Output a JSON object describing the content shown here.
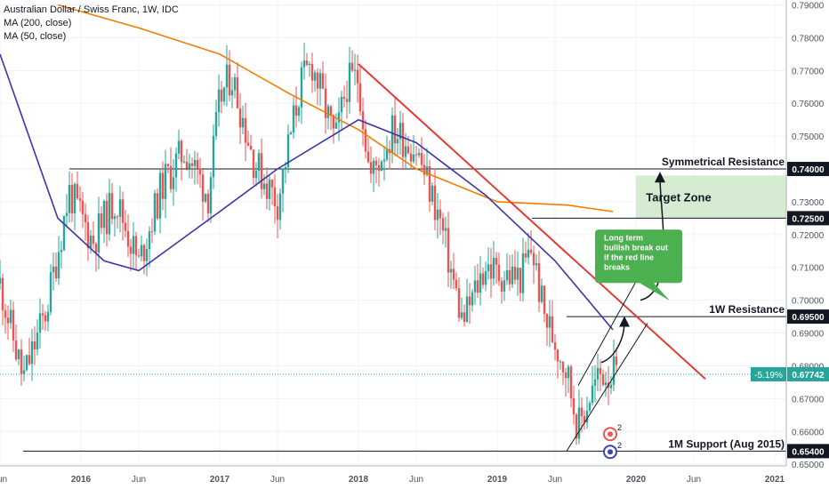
{
  "header": {
    "symbol_line": "Australian Dollar / Swiss Franc, 1W, IDC",
    "ma200_label": "MA (200, close)",
    "ma50_label": "MA (50, close)"
  },
  "colors": {
    "up": "#26a69a",
    "down": "#ef5350",
    "ma200": "#f57c00",
    "ma50": "#3f32a8",
    "trendline": "#e53935",
    "target_zone_fill": "#d6ecd2",
    "callout_fill": "#4caf50",
    "last_price_badge": "#26a69a"
  },
  "chart_data": {
    "type": "candlestick",
    "timeframe": "1W",
    "x_ticks": [
      "Jun",
      "2016",
      "Jun",
      "2017",
      "Jun",
      "2018",
      "Jun",
      "2019",
      "Jun",
      "2020",
      "Jun",
      "2021"
    ],
    "y_ticks": [
      "0.65000",
      "0.66000",
      "0.67000",
      "0.68000",
      "0.69000",
      "0.70000",
      "0.71000",
      "0.72000",
      "0.73000",
      "0.74000",
      "0.75000",
      "0.76000",
      "0.77000",
      "0.78000",
      "0.79000"
    ],
    "ylim": [
      0.6495,
      0.7915
    ],
    "xlim": [
      "2015-06",
      "2021-02"
    ],
    "ohlc_anchors": [
      {
        "date": "2015-06",
        "close": 0.705
      },
      {
        "date": "2015-08",
        "close": 0.676
      },
      {
        "date": "2015-10",
        "close": 0.697
      },
      {
        "date": "2015-12",
        "close": 0.733
      },
      {
        "date": "2016-02",
        "close": 0.718
      },
      {
        "date": "2016-04",
        "close": 0.731
      },
      {
        "date": "2016-06",
        "close": 0.711
      },
      {
        "date": "2016-08",
        "close": 0.735
      },
      {
        "date": "2016-10",
        "close": 0.746
      },
      {
        "date": "2016-12",
        "close": 0.732
      },
      {
        "date": "2017-01",
        "close": 0.761
      },
      {
        "date": "2017-02",
        "close": 0.769
      },
      {
        "date": "2017-04",
        "close": 0.742
      },
      {
        "date": "2017-06",
        "close": 0.73
      },
      {
        "date": "2017-08",
        "close": 0.766
      },
      {
        "date": "2017-09",
        "close": 0.772
      },
      {
        "date": "2017-11",
        "close": 0.748
      },
      {
        "date": "2017-12",
        "close": 0.766
      },
      {
        "date": "2018-01",
        "close": 0.768
      },
      {
        "date": "2018-02",
        "close": 0.737
      },
      {
        "date": "2018-04",
        "close": 0.752
      },
      {
        "date": "2018-06",
        "close": 0.746
      },
      {
        "date": "2018-08",
        "close": 0.725
      },
      {
        "date": "2018-10",
        "close": 0.693
      },
      {
        "date": "2018-12",
        "close": 0.711
      },
      {
        "date": "2019-01",
        "close": 0.708
      },
      {
        "date": "2019-03",
        "close": 0.707
      },
      {
        "date": "2019-04",
        "close": 0.716
      },
      {
        "date": "2019-05",
        "close": 0.696
      },
      {
        "date": "2019-07",
        "close": 0.679
      },
      {
        "date": "2019-08",
        "close": 0.661
      },
      {
        "date": "2019-09",
        "close": 0.671
      },
      {
        "date": "2019-10",
        "close": 0.678
      },
      {
        "date": "2019-11",
        "close": 0.6774
      }
    ],
    "ma200": [
      {
        "date": "2015-11",
        "value": 0.79
      },
      {
        "date": "2016-06",
        "value": 0.783
      },
      {
        "date": "2017-01",
        "value": 0.775
      },
      {
        "date": "2017-07",
        "value": 0.763
      },
      {
        "date": "2018-01",
        "value": 0.752
      },
      {
        "date": "2018-06",
        "value": 0.74
      },
      {
        "date": "2019-01",
        "value": 0.73
      },
      {
        "date": "2019-07",
        "value": 0.729
      },
      {
        "date": "2019-11",
        "value": 0.727
      }
    ],
    "ma50": [
      {
        "date": "2015-06",
        "value": 0.775
      },
      {
        "date": "2015-11",
        "value": 0.725
      },
      {
        "date": "2016-03",
        "value": 0.712
      },
      {
        "date": "2016-06",
        "value": 0.709
      },
      {
        "date": "2017-01",
        "value": 0.727
      },
      {
        "date": "2017-06",
        "value": 0.74
      },
      {
        "date": "2018-01",
        "value": 0.755
      },
      {
        "date": "2018-06",
        "value": 0.748
      },
      {
        "date": "2018-12",
        "value": 0.732
      },
      {
        "date": "2019-06",
        "value": 0.712
      },
      {
        "date": "2019-11",
        "value": 0.691
      }
    ],
    "horizontal_levels": [
      {
        "label": "Symmetrical Resistance",
        "value": 0.74,
        "price_label": "0.74000",
        "from": "2015-12"
      },
      {
        "label": "",
        "value": 0.725,
        "price_label": "0.72500",
        "from": "2019-04"
      },
      {
        "label": "1W Resistance",
        "value": 0.695,
        "price_label": "0.69500",
        "from": "2019-07"
      },
      {
        "label": "1M Support (Aug 2015)",
        "value": 0.654,
        "price_label": "0.65400",
        "from": "2015-08"
      }
    ],
    "last_price": {
      "value": 0.67742,
      "label": "0.67742",
      "change": "-5.19%"
    },
    "target_zone": {
      "label": "Target Zone",
      "from_value": 0.725,
      "to_value": 0.738,
      "from_date": "2020-01"
    },
    "red_trendline": {
      "from": {
        "date": "2018-01",
        "value": 0.772
      },
      "to": {
        "date": "2020-07",
        "value": 0.676
      }
    },
    "channel_lower": {
      "from": {
        "date": "2019-07",
        "value": 0.654
      },
      "to": {
        "date": "2020-02",
        "value": 0.693
      }
    },
    "channel_upper": {
      "from": {
        "date": "2019-08",
        "value": 0.674
      },
      "to": {
        "date": "2020-02",
        "value": 0.712
      }
    },
    "callout": {
      "text_lines": [
        "Long term",
        "bullish break out",
        "if the red line",
        "breaks"
      ]
    },
    "event_badges": [
      {
        "label": "2"
      },
      {
        "label": "2"
      }
    ]
  }
}
